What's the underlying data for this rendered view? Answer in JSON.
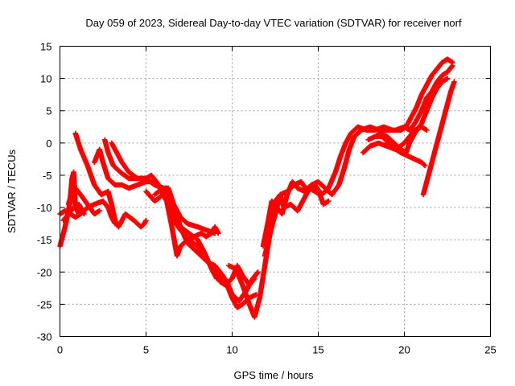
{
  "chart_data": {
    "type": "scatter",
    "title": "Day 059 of 2023, Sidereal Day-to-day VTEC variation (SDTVAR) for receiver norf",
    "xlabel": "GPS time / hours",
    "ylabel": "SDTVAR / TECUs",
    "xlim": [
      0,
      25
    ],
    "ylim": [
      -30,
      15
    ],
    "xticks": [
      "0",
      "5",
      "10",
      "15",
      "20",
      "25"
    ],
    "yticks": [
      "15",
      "10",
      "5",
      "0",
      "-5",
      "-10",
      "-15",
      "-20",
      "-25",
      "-30"
    ],
    "grid": true,
    "marker": "plus",
    "color": "#ff0000",
    "series": [
      {
        "points": [
          [
            0.0,
            -16.0
          ],
          [
            0.3,
            -13.0
          ],
          [
            0.6,
            -9.0
          ],
          [
            0.9,
            -7.0
          ],
          [
            1.2,
            -8.0
          ],
          [
            1.6,
            -9.5
          ],
          [
            2.0,
            -11.0
          ],
          [
            2.3,
            -10.5
          ]
        ]
      },
      {
        "points": [
          [
            0.0,
            -11.0
          ],
          [
            0.3,
            -10.5
          ],
          [
            0.6,
            -11.0
          ],
          [
            0.9,
            -11.5
          ],
          [
            1.2,
            -11.0
          ],
          [
            1.6,
            -10.0
          ],
          [
            2.0,
            -9.5
          ],
          [
            2.5,
            -9.0
          ],
          [
            2.8,
            -10.0
          ],
          [
            3.0,
            -11.5
          ],
          [
            3.2,
            -12.5
          ]
        ]
      },
      {
        "points": [
          [
            0.2,
            -12.0
          ],
          [
            0.5,
            -11.0
          ],
          [
            0.8,
            -10.0
          ],
          [
            1.1,
            -9.5
          ],
          [
            1.4,
            -11.0
          ]
        ]
      },
      {
        "points": [
          [
            0.5,
            -9.5
          ],
          [
            0.6,
            -8.5
          ],
          [
            0.7,
            -5.5
          ],
          [
            0.8,
            -4.5
          ],
          [
            0.9,
            -10.0
          ],
          [
            1.1,
            -11.0
          ]
        ]
      },
      {
        "points": [
          [
            0.9,
            1.5
          ],
          [
            1.2,
            -1.0
          ],
          [
            1.6,
            -3.5
          ],
          [
            2.0,
            -6.5
          ],
          [
            2.4,
            -8.0
          ],
          [
            2.8,
            -7.5
          ],
          [
            3.0,
            -9.5
          ],
          [
            3.2,
            -12.0
          ],
          [
            3.4,
            -13.0
          ],
          [
            3.8,
            -11.0
          ],
          [
            4.3,
            -12.0
          ],
          [
            4.7,
            -13.0
          ],
          [
            4.9,
            -12.5
          ],
          [
            5.0,
            -12.0
          ]
        ]
      },
      {
        "points": [
          [
            2.0,
            -3.0
          ],
          [
            2.3,
            -1.0
          ],
          [
            2.5,
            -3.0
          ],
          [
            2.8,
            -5.5
          ],
          [
            3.2,
            -6.5
          ],
          [
            3.6,
            -6.5
          ],
          [
            4.0,
            -7.0
          ],
          [
            4.5,
            -6.5
          ],
          [
            5.0,
            -6.0
          ],
          [
            5.5,
            -6.0
          ],
          [
            5.8,
            -7.0
          ],
          [
            6.2,
            -9.0
          ],
          [
            6.5,
            -13.0
          ],
          [
            6.8,
            -17.5
          ],
          [
            7.0,
            -16.0
          ],
          [
            7.4,
            -15.0
          ],
          [
            7.8,
            -14.5
          ],
          [
            8.2,
            -14.0
          ],
          [
            8.5,
            -14.5
          ],
          [
            8.8,
            -14.0
          ],
          [
            9.0,
            -13.0
          ],
          [
            9.2,
            -14.0
          ]
        ]
      },
      {
        "points": [
          [
            2.6,
            0.5
          ],
          [
            2.8,
            -1.5
          ],
          [
            3.1,
            -3.5
          ],
          [
            3.5,
            -4.5
          ],
          [
            4.0,
            -5.5
          ],
          [
            4.5,
            -5.5
          ],
          [
            5.0,
            -5.5
          ],
          [
            5.3,
            -5.0
          ],
          [
            5.6,
            -6.0
          ],
          [
            6.0,
            -7.5
          ],
          [
            6.3,
            -9.5
          ],
          [
            6.7,
            -11.5
          ],
          [
            7.0,
            -13.0
          ],
          [
            7.5,
            -14.0
          ],
          [
            8.0,
            -15.0
          ],
          [
            8.4,
            -17.0
          ],
          [
            8.8,
            -19.5
          ],
          [
            9.1,
            -21.0
          ],
          [
            9.4,
            -20.5
          ],
          [
            9.7,
            -22.0
          ],
          [
            10.0,
            -24.0
          ],
          [
            10.3,
            -25.5
          ],
          [
            10.6,
            -25.0
          ],
          [
            11.0,
            -24.0
          ],
          [
            11.4,
            -23.5
          ]
        ]
      },
      {
        "points": [
          [
            3.0,
            0.0
          ],
          [
            3.3,
            -1.5
          ],
          [
            3.6,
            -3.0
          ],
          [
            4.0,
            -4.5
          ],
          [
            4.5,
            -5.5
          ],
          [
            5.0,
            -5.5
          ],
          [
            5.5,
            -6.5
          ],
          [
            6.0,
            -7.0
          ],
          [
            6.3,
            -7.0
          ],
          [
            6.6,
            -9.5
          ],
          [
            7.0,
            -13.0
          ],
          [
            7.4,
            -15.5
          ],
          [
            7.8,
            -16.5
          ],
          [
            8.2,
            -17.5
          ],
          [
            8.6,
            -18.5
          ],
          [
            9.0,
            -19.0
          ],
          [
            9.3,
            -20.0
          ],
          [
            9.7,
            -21.5
          ],
          [
            10.0,
            -23.5
          ],
          [
            10.4,
            -24.5
          ],
          [
            10.8,
            -23.0
          ],
          [
            11.2,
            -21.0
          ],
          [
            11.5,
            -20.0
          ]
        ]
      },
      {
        "points": [
          [
            5.0,
            -7.5
          ],
          [
            5.5,
            -9.0
          ],
          [
            6.0,
            -8.0
          ],
          [
            6.3,
            -9.5
          ],
          [
            6.6,
            -12.0
          ],
          [
            7.0,
            -13.5
          ],
          [
            7.5,
            -15.0
          ],
          [
            8.0,
            -16.0
          ],
          [
            8.5,
            -18.0
          ],
          [
            9.0,
            -20.0
          ],
          [
            9.3,
            -21.5
          ],
          [
            9.6,
            -22.0
          ],
          [
            10.0,
            -21.0
          ],
          [
            10.3,
            -19.0
          ],
          [
            10.6,
            -20.5
          ],
          [
            11.0,
            -22.0
          ],
          [
            11.3,
            -21.0
          ]
        ]
      },
      {
        "points": [
          [
            5.5,
            -8.0
          ],
          [
            6.0,
            -7.0
          ],
          [
            6.5,
            -9.0
          ],
          [
            7.0,
            -11.5
          ],
          [
            7.4,
            -12.5
          ],
          [
            8.0,
            -13.0
          ],
          [
            8.5,
            -13.5
          ],
          [
            9.0,
            -14.0
          ]
        ]
      },
      {
        "points": [
          [
            9.8,
            -19.0
          ],
          [
            10.2,
            -19.5
          ],
          [
            10.6,
            -22.0
          ],
          [
            11.0,
            -25.0
          ],
          [
            11.3,
            -27.0
          ],
          [
            11.6,
            -24.0
          ],
          [
            11.9,
            -19.0
          ],
          [
            12.2,
            -14.0
          ],
          [
            12.5,
            -9.0
          ],
          [
            12.8,
            -8.0
          ],
          [
            13.0,
            -10.0
          ],
          [
            13.4,
            -9.5
          ],
          [
            13.8,
            -10.5
          ],
          [
            14.2,
            -8.5
          ],
          [
            14.5,
            -7.0
          ],
          [
            14.8,
            -7.5
          ],
          [
            15.1,
            -8.0
          ],
          [
            15.3,
            -9.5
          ],
          [
            15.6,
            -9.0
          ]
        ]
      },
      {
        "points": [
          [
            11.8,
            -16.0
          ],
          [
            12.1,
            -12.0
          ],
          [
            12.3,
            -9.0
          ],
          [
            12.6,
            -10.0
          ],
          [
            12.9,
            -11.0
          ],
          [
            13.2,
            -8.0
          ],
          [
            13.5,
            -6.0
          ],
          [
            13.8,
            -7.0
          ],
          [
            14.2,
            -7.5
          ],
          [
            14.6,
            -6.5
          ],
          [
            15.0,
            -6.0
          ],
          [
            15.4,
            -7.0
          ],
          [
            15.8,
            -8.0
          ],
          [
            16.2,
            -6.5
          ],
          [
            16.5,
            -4.0
          ],
          [
            16.8,
            -1.0
          ],
          [
            17.1,
            1.0
          ],
          [
            17.5,
            2.0
          ],
          [
            18.0,
            2.5
          ],
          [
            18.5,
            2.0
          ],
          [
            19.0,
            2.0
          ],
          [
            19.5,
            2.0
          ],
          [
            20.0,
            2.5
          ],
          [
            20.3,
            2.0
          ],
          [
            20.6,
            3.0
          ],
          [
            21.0,
            5.0
          ],
          [
            21.3,
            7.0
          ],
          [
            21.6,
            8.0
          ],
          [
            21.9,
            9.5
          ],
          [
            22.2,
            10.5
          ],
          [
            22.5,
            11.0
          ],
          [
            22.8,
            12.0
          ]
        ]
      },
      {
        "points": [
          [
            11.9,
            -17.5
          ],
          [
            12.2,
            -14.0
          ],
          [
            12.5,
            -11.0
          ],
          [
            12.8,
            -8.0
          ],
          [
            13.2,
            -7.5
          ],
          [
            13.6,
            -6.5
          ],
          [
            14.0,
            -6.0
          ],
          [
            14.4,
            -7.5
          ],
          [
            14.8,
            -6.5
          ],
          [
            15.2,
            -8.0
          ],
          [
            15.6,
            -7.0
          ],
          [
            16.0,
            -4.5
          ],
          [
            16.3,
            -2.0
          ],
          [
            16.6,
            0.0
          ],
          [
            16.9,
            1.5
          ],
          [
            17.3,
            2.5
          ],
          [
            17.8,
            2.0
          ],
          [
            18.3,
            2.0
          ],
          [
            18.8,
            2.5
          ],
          [
            19.3,
            2.0
          ],
          [
            19.8,
            2.0
          ],
          [
            20.1,
            2.5
          ],
          [
            20.4,
            4.0
          ],
          [
            20.7,
            5.5
          ],
          [
            21.0,
            7.5
          ],
          [
            21.3,
            9.0
          ],
          [
            21.6,
            10.5
          ],
          [
            21.9,
            11.5
          ],
          [
            22.2,
            12.5
          ],
          [
            22.5,
            13.0
          ],
          [
            22.8,
            12.5
          ]
        ]
      },
      {
        "points": [
          [
            17.6,
            -1.5
          ],
          [
            18.0,
            -0.5
          ],
          [
            18.5,
            0.0
          ],
          [
            19.0,
            -0.5
          ],
          [
            19.5,
            -1.0
          ],
          [
            20.0,
            0.0
          ],
          [
            20.3,
            1.0
          ],
          [
            20.6,
            2.0
          ],
          [
            21.0,
            2.5
          ],
          [
            21.3,
            2.0
          ]
        ]
      },
      {
        "points": [
          [
            17.9,
            0.5
          ],
          [
            18.3,
            1.0
          ],
          [
            18.7,
            1.0
          ],
          [
            19.1,
            0.0
          ],
          [
            19.5,
            -1.0
          ],
          [
            19.8,
            -1.5
          ],
          [
            20.2,
            -2.0
          ],
          [
            20.6,
            -2.5
          ],
          [
            21.0,
            -3.0
          ],
          [
            21.2,
            -3.5
          ]
        ]
      },
      {
        "points": [
          [
            18.5,
            1.5
          ],
          [
            19.0,
            1.0
          ],
          [
            19.4,
            0.0
          ],
          [
            19.8,
            -1.0
          ],
          [
            20.1,
            -1.5
          ],
          [
            20.3,
            0.0
          ],
          [
            20.6,
            1.5
          ],
          [
            21.0,
            3.0
          ],
          [
            21.3,
            5.0
          ],
          [
            21.6,
            7.0
          ],
          [
            21.9,
            8.5
          ],
          [
            22.2,
            9.5
          ],
          [
            22.5,
            10.0
          ]
        ]
      },
      {
        "points": [
          [
            21.1,
            -8.0
          ],
          [
            21.3,
            -6.0
          ],
          [
            21.5,
            -4.0
          ],
          [
            21.7,
            -2.0
          ],
          [
            21.9,
            0.0
          ],
          [
            22.1,
            2.0
          ],
          [
            22.3,
            4.0
          ],
          [
            22.5,
            6.0
          ],
          [
            22.7,
            8.0
          ],
          [
            22.9,
            9.5
          ]
        ]
      }
    ]
  }
}
